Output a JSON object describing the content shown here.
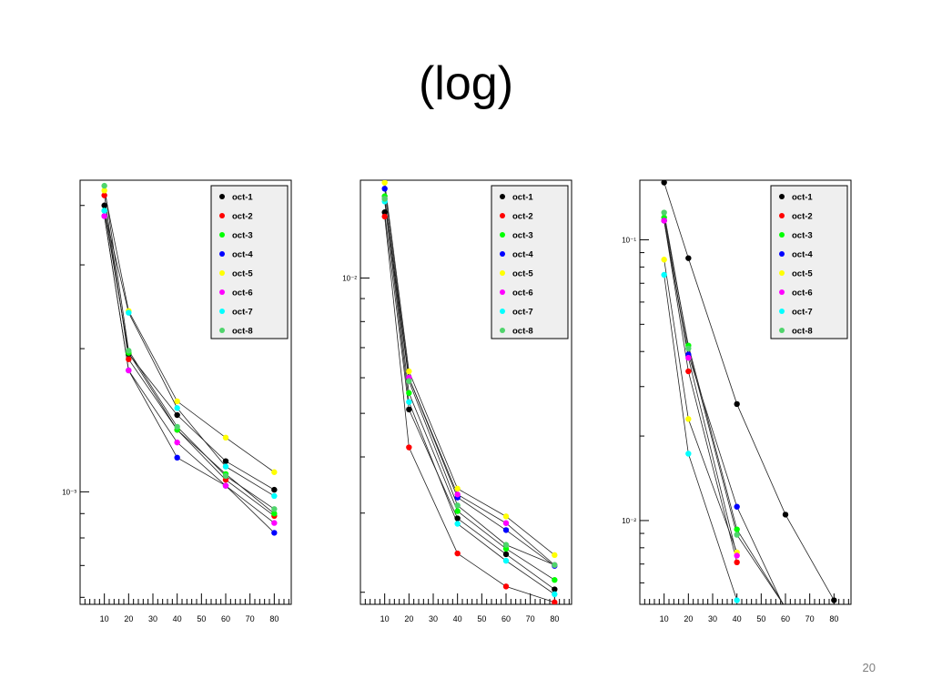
{
  "slide": {
    "title": "(log)",
    "page_number": "20"
  },
  "series_colors": {
    "oct-1": "#000000",
    "oct-2": "#ff0000",
    "oct-3": "#00ff00",
    "oct-4": "#0000ff",
    "oct-5": "#ffff00",
    "oct-6": "#ff00ff",
    "oct-7": "#00ffff",
    "oct-8": "#4fd46c"
  },
  "chart_data": [
    {
      "type": "line",
      "log_y": true,
      "xlim": [
        0,
        87
      ],
      "ylim": [
        0.00058,
        0.00452
      ],
      "x_ticks": [
        "10",
        "20",
        "30",
        "40",
        "50",
        "60",
        "70",
        "80"
      ],
      "y_tick_labels": [
        {
          "value": 0.001,
          "label": "10⁻³"
        }
      ],
      "legend": "top-right",
      "series": [
        {
          "name": "oct-1",
          "x": [
            10,
            20,
            40,
            60,
            80
          ],
          "y": [
            0.004,
            0.00195,
            0.00145,
            0.00116,
            0.00101
          ]
        },
        {
          "name": "oct-2",
          "x": [
            10,
            20,
            40,
            60,
            80
          ],
          "y": [
            0.0042,
            0.0019,
            0.00135,
            0.00106,
            0.00089
          ]
        },
        {
          "name": "oct-3",
          "x": [
            10,
            20,
            40,
            60,
            80
          ],
          "y": [
            0.0039,
            0.00196,
            0.00135,
            0.00109,
            0.0009
          ]
        },
        {
          "name": "oct-4",
          "x": [
            10,
            20,
            40,
            60,
            80
          ],
          "y": [
            0.0038,
            0.0018,
            0.00118,
            0.00103,
            0.00082
          ]
        },
        {
          "name": "oct-5",
          "x": [
            10,
            20,
            40,
            60,
            80
          ],
          "y": [
            0.0043,
            0.0024,
            0.00155,
            0.0013,
            0.0011
          ]
        },
        {
          "name": "oct-6",
          "x": [
            10,
            20,
            40,
            60,
            80
          ],
          "y": [
            0.0038,
            0.0018,
            0.00127,
            0.00103,
            0.00086
          ]
        },
        {
          "name": "oct-7",
          "x": [
            10,
            20,
            40,
            60,
            80
          ],
          "y": [
            0.0039,
            0.00238,
            0.0015,
            0.00113,
            0.00098
          ]
        },
        {
          "name": "oct-8",
          "x": [
            10,
            20,
            40,
            60,
            80
          ],
          "y": [
            0.0044,
            0.00198,
            0.00137,
            0.00108,
            0.00092
          ]
        }
      ]
    },
    {
      "type": "line",
      "log_y": true,
      "xlim": [
        0,
        87
      ],
      "ylim": [
        0.00188,
        0.0165
      ],
      "x_ticks": [
        "10",
        "20",
        "30",
        "40",
        "50",
        "60",
        "70",
        "80"
      ],
      "y_tick_labels": [
        {
          "value": 0.01,
          "label": "10⁻²"
        }
      ],
      "legend": "top-right",
      "series": [
        {
          "name": "oct-1",
          "x": [
            10,
            20,
            40,
            60,
            80
          ],
          "y": [
            0.014,
            0.0051,
            0.00292,
            0.00243,
            0.00203
          ]
        },
        {
          "name": "oct-2",
          "x": [
            10,
            20,
            40,
            60,
            80
          ],
          "y": [
            0.0137,
            0.0042,
            0.00244,
            0.00206,
            0.0019
          ]
        },
        {
          "name": "oct-3",
          "x": [
            10,
            20,
            40,
            60,
            80
          ],
          "y": [
            0.0152,
            0.00555,
            0.00303,
            0.0025,
            0.00213
          ]
        },
        {
          "name": "oct-4",
          "x": [
            10,
            20,
            40,
            60,
            80
          ],
          "y": [
            0.0158,
            0.006,
            0.00325,
            0.00275,
            0.00229
          ]
        },
        {
          "name": "oct-5",
          "x": [
            10,
            20,
            40,
            60,
            80
          ],
          "y": [
            0.0163,
            0.0062,
            0.0034,
            0.00295,
            0.00242
          ]
        },
        {
          "name": "oct-6",
          "x": [
            10,
            20,
            40,
            60,
            80
          ],
          "y": [
            0.015,
            0.006,
            0.0033,
            0.00285,
            0.0023
          ]
        },
        {
          "name": "oct-7",
          "x": [
            10,
            20,
            40,
            60,
            80
          ],
          "y": [
            0.0148,
            0.0053,
            0.00284,
            0.00235,
            0.00198
          ]
        },
        {
          "name": "oct-8",
          "x": [
            10,
            20,
            40,
            60,
            80
          ],
          "y": [
            0.015,
            0.0059,
            0.00312,
            0.00255,
            0.0023
          ]
        }
      ]
    },
    {
      "type": "line",
      "log_y": true,
      "xlim": [
        0,
        87
      ],
      "ylim": [
        0.00503,
        0.163
      ],
      "x_ticks": [
        "10",
        "20",
        "30",
        "40",
        "50",
        "60",
        "70",
        "80"
      ],
      "y_tick_labels": [
        {
          "value": 0.1,
          "label": "10⁻¹"
        },
        {
          "value": 0.01,
          "label": "10⁻²"
        }
      ],
      "legend": "top-right",
      "series": [
        {
          "name": "oct-1",
          "x": [
            10,
            20,
            40,
            60,
            80
          ],
          "y": [
            0.16,
            0.086,
            0.026,
            0.0105,
            0.0052
          ]
        },
        {
          "name": "oct-2",
          "x": [
            10,
            20,
            40
          ],
          "y": [
            0.117,
            0.034,
            0.0071
          ]
        },
        {
          "name": "oct-3",
          "x": [
            10,
            20,
            40,
            60
          ],
          "y": [
            0.12,
            0.042,
            0.0093,
            0.0049
          ]
        },
        {
          "name": "oct-4",
          "x": [
            10,
            20,
            40,
            60
          ],
          "y": [
            0.117,
            0.039,
            0.0112,
            0.0048
          ]
        },
        {
          "name": "oct-5",
          "x": [
            10,
            20,
            40
          ],
          "y": [
            0.085,
            0.023,
            0.0077
          ]
        },
        {
          "name": "oct-6",
          "x": [
            10,
            20,
            40
          ],
          "y": [
            0.117,
            0.038,
            0.0075
          ]
        },
        {
          "name": "oct-7",
          "x": [
            10,
            20,
            40
          ],
          "y": [
            0.075,
            0.0173,
            0.0052
          ]
        },
        {
          "name": "oct-8",
          "x": [
            10,
            20,
            40,
            60
          ],
          "y": [
            0.125,
            0.041,
            0.0089,
            0.0049
          ]
        }
      ]
    }
  ]
}
